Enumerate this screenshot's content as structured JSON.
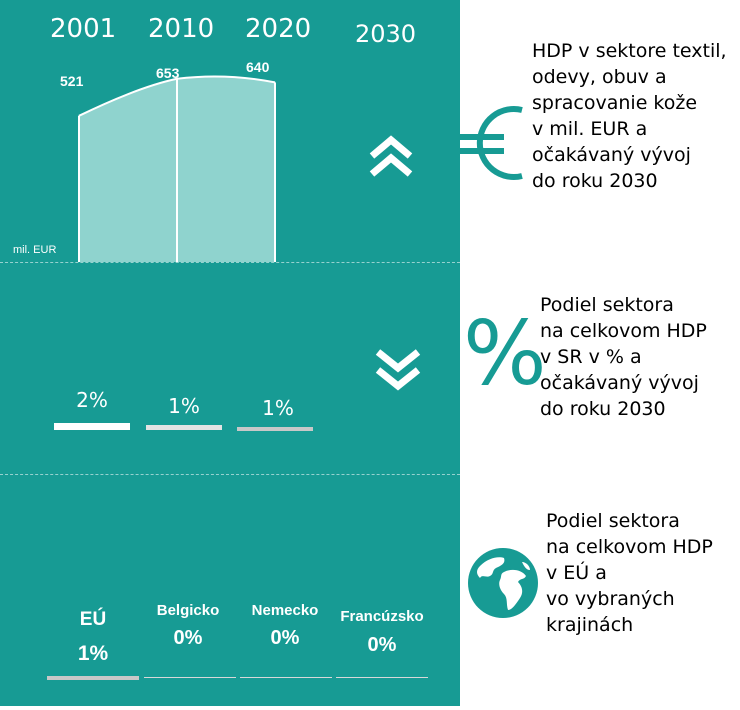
{
  "colors": {
    "panel": "#179b94",
    "accent": "#179b94",
    "fill": "#8fd3ce",
    "white": "#ffffff"
  },
  "years": [
    "2001",
    "2010",
    "2020",
    "2030"
  ],
  "chart_data": [
    {
      "type": "area",
      "x": [
        "2001",
        "2010",
        "2020"
      ],
      "values": [
        521,
        653,
        640
      ],
      "ylabel": "mil. EUR",
      "forecast_2030": "increase",
      "description": "HDP v sektore textil,\nodevy, obuv a\nspracovanie kože\nv mil. EUR a\nočakávaný vývoj\ndo roku 2030"
    },
    {
      "type": "bar",
      "categories": [
        "2001",
        "2010",
        "2020"
      ],
      "values": [
        2,
        1,
        1
      ],
      "labels": [
        "2%",
        "1%",
        "1%"
      ],
      "forecast_2030": "decrease",
      "description": "Podiel sektora\nna celkovom HDP\nv SR v % a\nočakávaný vývoj\ndo roku 2030"
    },
    {
      "type": "table",
      "categories": [
        "EÚ",
        "Belgicko",
        "Nemecko",
        "Francúzsko"
      ],
      "labels": [
        "1%",
        "0%",
        "0%",
        "0%"
      ],
      "description": "Podiel sektora\nna celkovom HDP\nv EÚ a\nvo vybraných\nkrajinách"
    }
  ],
  "icons": {
    "section1": "euro-icon",
    "section2": "percent-icon",
    "section3": "globe-icon",
    "up": "double-chevron-up-icon",
    "down": "double-chevron-down-icon"
  },
  "percent_symbol": "%"
}
